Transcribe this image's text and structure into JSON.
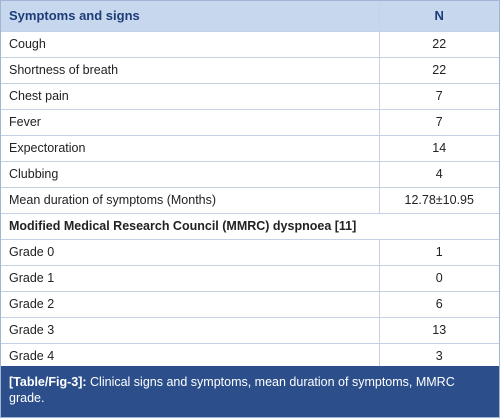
{
  "table": {
    "header": [
      "Symptoms and signs",
      "N"
    ],
    "rows": [
      [
        "Cough",
        "22"
      ],
      [
        "Shortness of breath",
        "22"
      ],
      [
        "Chest pain",
        "7"
      ],
      [
        "Fever",
        "7"
      ],
      [
        "Expectoration",
        "14"
      ],
      [
        "Clubbing",
        "4"
      ],
      [
        "Mean duration of symptoms (Months)",
        "12.78±10.95"
      ],
      [
        "Modified Medical Research Council (MMRC) dyspnoea [11]"
      ],
      [
        "Grade 0",
        "1"
      ],
      [
        "Grade 1",
        "0"
      ],
      [
        "Grade 2",
        "6"
      ],
      [
        "Grade 3",
        "13"
      ],
      [
        "Grade 4",
        "3"
      ]
    ]
  },
  "caption": {
    "label": "[Table/Fig-3]:",
    "text": "Clinical signs and symptoms, mean duration of symptoms, MMRC grade."
  }
}
